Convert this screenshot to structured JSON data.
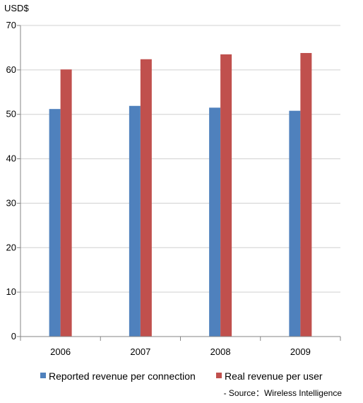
{
  "chart_data": {
    "type": "bar",
    "ylabel": "USD$",
    "categories": [
      "2006",
      "2007",
      "2008",
      "2009"
    ],
    "ylim": [
      0,
      70
    ],
    "yticks": [
      0,
      10,
      20,
      30,
      40,
      50,
      60,
      70
    ],
    "grid": true,
    "legend_placement": "bottom",
    "series": [
      {
        "name": "Reported revenue per connection",
        "color": "#4F81BD",
        "values": [
          51.2,
          51.9,
          51.5,
          50.8
        ]
      },
      {
        "name": "Real revenue per user",
        "color": "#C0504D",
        "values": [
          60.1,
          62.4,
          63.5,
          63.8
        ]
      }
    ],
    "source": "- Source：Wireless Intelligence"
  }
}
